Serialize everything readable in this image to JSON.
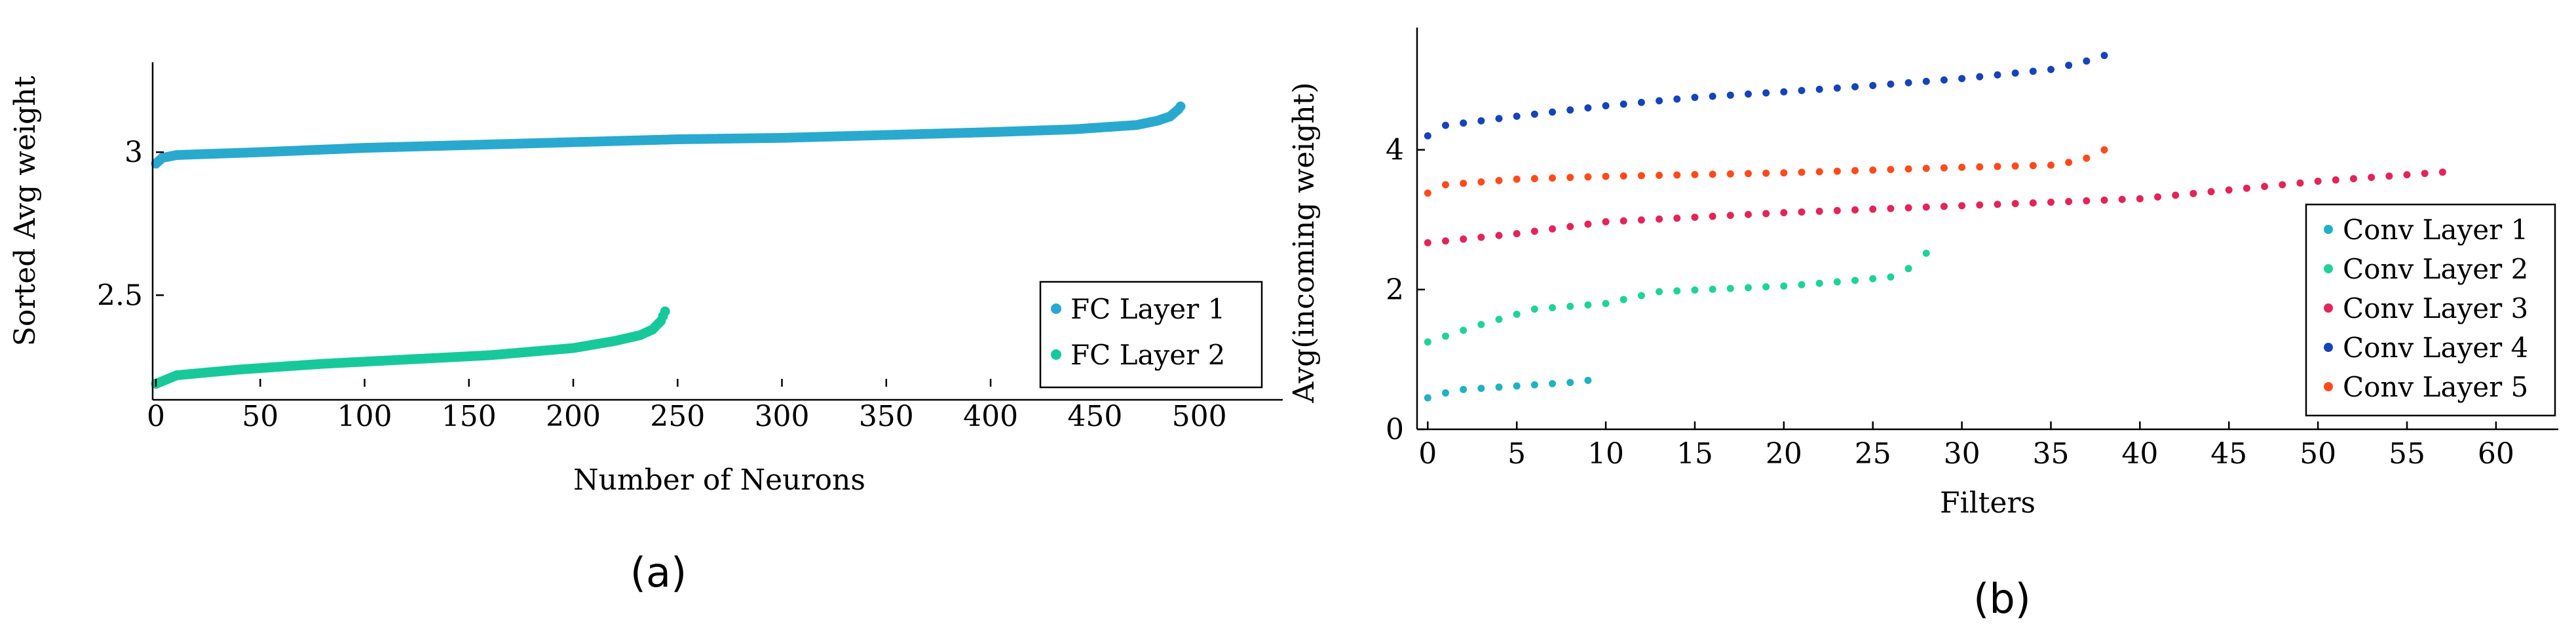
{
  "panels": {
    "a": "(a)",
    "b": "(b)"
  },
  "chart_data": [
    {
      "type": "scatter",
      "panel": "a",
      "xlabel": "Number of Neurons",
      "ylabel": "Sorted Avg weight",
      "xlim": [
        0,
        540
      ],
      "ylim": [
        2.18,
        3.28
      ],
      "xticks": [
        0,
        50,
        100,
        150,
        200,
        250,
        300,
        350,
        400,
        450,
        500
      ],
      "yticks": [
        2.5,
        3
      ],
      "legend_position": "lower-right",
      "series": [
        {
          "name": "FC Layer 1",
          "color": "#2aa9cf",
          "count": 492,
          "anchors": [
            [
              0,
              2.96
            ],
            [
              3,
              2.98
            ],
            [
              10,
              2.99
            ],
            [
              50,
              3.0
            ],
            [
              100,
              3.015
            ],
            [
              150,
              3.025
            ],
            [
              200,
              3.035
            ],
            [
              250,
              3.045
            ],
            [
              300,
              3.05
            ],
            [
              350,
              3.06
            ],
            [
              400,
              3.07
            ],
            [
              440,
              3.08
            ],
            [
              470,
              3.095
            ],
            [
              480,
              3.11
            ],
            [
              486,
              3.125
            ],
            [
              490,
              3.15
            ],
            [
              492,
              3.17
            ]
          ]
        },
        {
          "name": "FC Layer 2",
          "color": "#17c99a",
          "count": 245,
          "anchors": [
            [
              0,
              2.19
            ],
            [
              10,
              2.22
            ],
            [
              40,
              2.24
            ],
            [
              80,
              2.26
            ],
            [
              120,
              2.275
            ],
            [
              160,
              2.29
            ],
            [
              200,
              2.315
            ],
            [
              220,
              2.34
            ],
            [
              232,
              2.36
            ],
            [
              238,
              2.38
            ],
            [
              242,
              2.41
            ],
            [
              245,
              2.46
            ]
          ]
        }
      ]
    },
    {
      "type": "scatter",
      "panel": "b",
      "xlabel": "Filters",
      "ylabel": "Avg(incoming weight)",
      "xlim": [
        -0.6,
        63.5
      ],
      "ylim": [
        0,
        5.75
      ],
      "xticks": [
        0,
        5,
        10,
        15,
        20,
        25,
        30,
        35,
        40,
        45,
        50,
        55,
        60
      ],
      "yticks": [
        0,
        2,
        4
      ],
      "legend_position": "right",
      "series": [
        {
          "name": "Conv Layer 1",
          "color": "#1fb2c2",
          "count": 10,
          "anchors": [
            [
              0,
              0.45
            ],
            [
              1,
              0.52
            ],
            [
              2,
              0.57
            ],
            [
              5,
              0.62
            ],
            [
              8,
              0.67
            ],
            [
              9,
              0.7
            ]
          ]
        },
        {
          "name": "Conv Layer 2",
          "color": "#1ed494",
          "count": 29,
          "anchors": [
            [
              0,
              1.25
            ],
            [
              3,
              1.5
            ],
            [
              6,
              1.72
            ],
            [
              10,
              1.8
            ],
            [
              13,
              1.97
            ],
            [
              20,
              2.05
            ],
            [
              24,
              2.13
            ],
            [
              26,
              2.18
            ],
            [
              27,
              2.3
            ],
            [
              28,
              2.52
            ]
          ]
        },
        {
          "name": "Conv Layer 3",
          "color": "#e3245a",
          "count": 58,
          "anchors": [
            [
              0,
              2.67
            ],
            [
              5,
              2.8
            ],
            [
              10,
              2.97
            ],
            [
              20,
              3.1
            ],
            [
              30,
              3.2
            ],
            [
              40,
              3.3
            ],
            [
              50,
              3.55
            ],
            [
              57,
              3.68
            ]
          ]
        },
        {
          "name": "Conv Layer 4",
          "color": "#1544b8",
          "count": 39,
          "anchors": [
            [
              0,
              4.2
            ],
            [
              1,
              4.35
            ],
            [
              5,
              4.48
            ],
            [
              10,
              4.63
            ],
            [
              15,
              4.75
            ],
            [
              20,
              4.83
            ],
            [
              25,
              4.92
            ],
            [
              30,
              5.02
            ],
            [
              35,
              5.15
            ],
            [
              37,
              5.27
            ],
            [
              38,
              5.35
            ]
          ]
        },
        {
          "name": "Conv Layer 5",
          "color": "#ff4a1c",
          "count": 39,
          "anchors": [
            [
              0,
              3.38
            ],
            [
              1,
              3.5
            ],
            [
              5,
              3.58
            ],
            [
              10,
              3.62
            ],
            [
              20,
              3.67
            ],
            [
              30,
              3.75
            ],
            [
              35,
              3.78
            ],
            [
              36,
              3.82
            ],
            [
              37,
              3.88
            ],
            [
              38,
              4.0
            ]
          ]
        }
      ]
    }
  ]
}
